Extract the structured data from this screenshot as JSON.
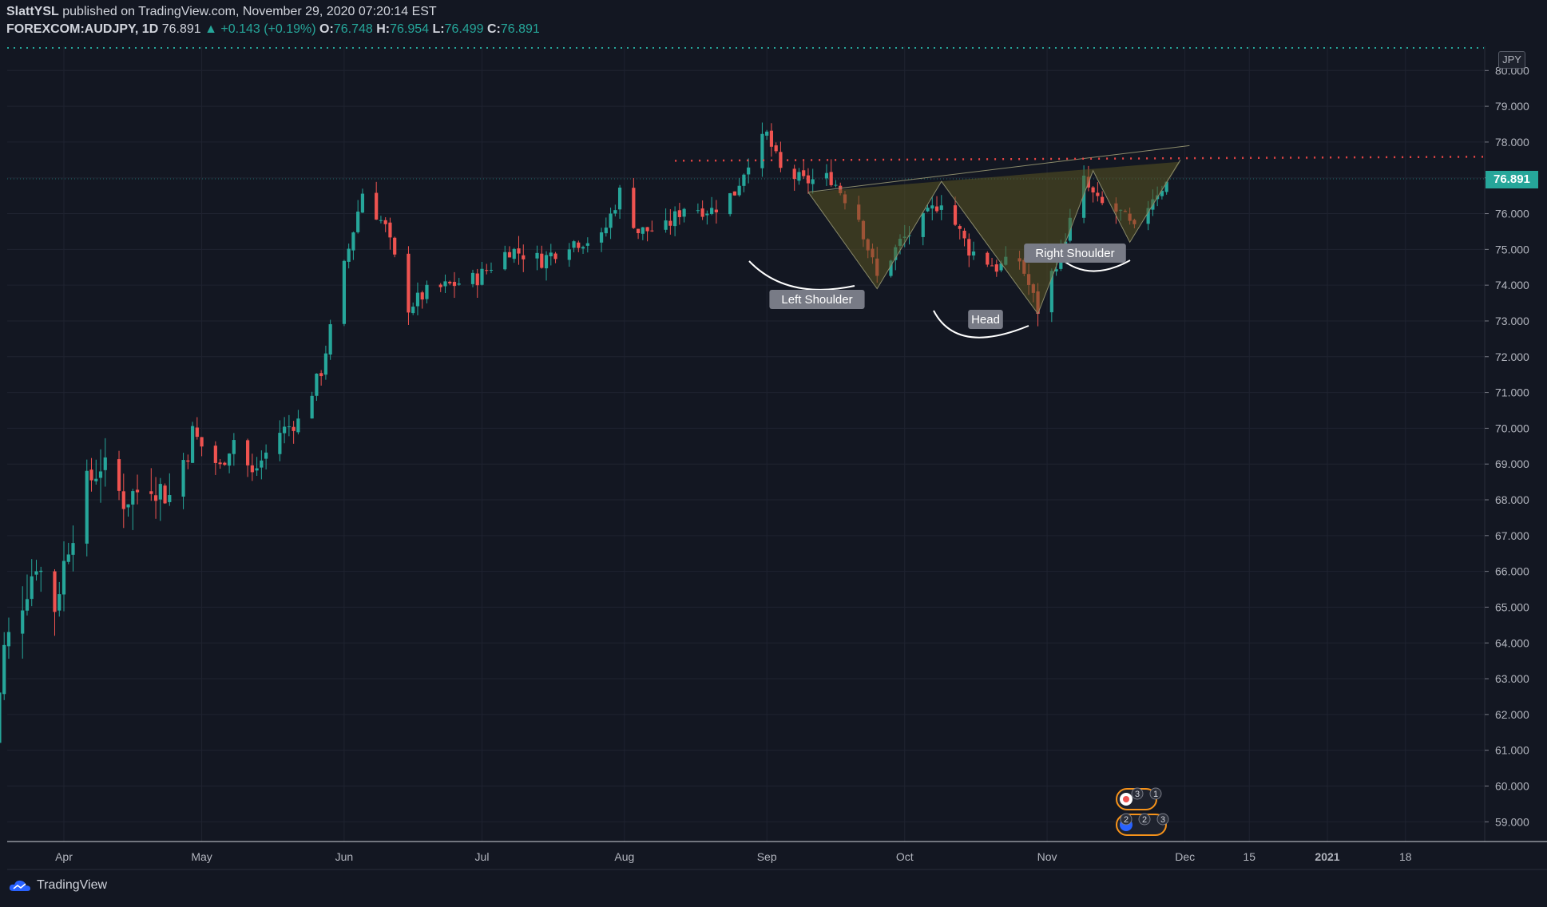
{
  "header": {
    "author": "SlattYSL",
    "published_text": "published on TradingView.com, November 29, 2020 07:20:14 EST",
    "symbol": "FOREXCOM:AUDJPY, 1D",
    "last": "76.891",
    "change": "+0.143 (+0.19%)",
    "open_label": "O:",
    "open": "76.748",
    "high_label": "H:",
    "high": "76.954",
    "low_label": "L:",
    "low": "76.499",
    "close_label": "C:",
    "close": "76.891"
  },
  "price_axis": {
    "currency": "JPY",
    "ticks": [
      "80.000",
      "79.000",
      "78.000",
      "77.000",
      "76.000",
      "75.000",
      "74.000",
      "73.000",
      "72.000",
      "71.000",
      "70.000",
      "69.000",
      "68.000",
      "67.000",
      "66.000",
      "65.000",
      "64.000",
      "63.000",
      "62.000",
      "61.000",
      "60.000",
      "59.000"
    ],
    "current_price": "76.891"
  },
  "time_axis": {
    "labels": [
      "Apr",
      "May",
      "Jun",
      "Jul",
      "Aug",
      "Sep",
      "Oct",
      "Nov",
      "Dec",
      "15",
      "2021",
      "18"
    ]
  },
  "annotations": {
    "left_shoulder": "Left Shoulder",
    "head": "Head",
    "right_shoulder": "Right Shoulder"
  },
  "event_badges": [
    "3",
    "1",
    "2",
    "2",
    "3"
  ],
  "footer": {
    "brand": "TradingView"
  },
  "colors": {
    "background": "#131722",
    "up": "#26a69a",
    "down": "#ef5350",
    "pattern_fill": "#5a5420",
    "resistance": "#e84545",
    "grid": "#1f2330"
  },
  "chart_data": {
    "type": "candlestick",
    "symbol": "FOREXCOM:AUDJPY",
    "interval": "1D",
    "ylim": [
      58.2,
      80.8
    ],
    "x_range": [
      "2020-03-16",
      "2021-01-20"
    ],
    "resistance_level": 77.5,
    "pattern": "inverse head and shoulders",
    "anchors": [
      [
        "2020-03-16",
        60.0
      ],
      [
        "2020-03-19",
        63.8
      ],
      [
        "2020-03-23",
        65.2
      ],
      [
        "2020-03-26",
        66.3
      ],
      [
        "2020-03-30",
        65.0
      ],
      [
        "2020-04-02",
        66.8
      ],
      [
        "2020-04-06",
        68.4
      ],
      [
        "2020-04-09",
        69.0
      ],
      [
        "2020-04-14",
        68.0
      ],
      [
        "2020-04-20",
        68.5
      ],
      [
        "2020-04-24",
        68.1
      ],
      [
        "2020-04-29",
        69.8
      ],
      [
        "2020-05-05",
        68.9
      ],
      [
        "2020-05-08",
        69.7
      ],
      [
        "2020-05-12",
        68.7
      ],
      [
        "2020-05-18",
        69.9
      ],
      [
        "2020-05-22",
        70.2
      ],
      [
        "2020-05-27",
        71.6
      ],
      [
        "2020-06-01",
        74.5
      ],
      [
        "2020-06-05",
        76.6
      ],
      [
        "2020-06-10",
        75.6
      ],
      [
        "2020-06-15",
        73.4
      ],
      [
        "2020-06-19",
        73.8
      ],
      [
        "2020-06-24",
        74.0
      ],
      [
        "2020-06-30",
        74.2
      ],
      [
        "2020-07-07",
        75.0
      ],
      [
        "2020-07-14",
        74.7
      ],
      [
        "2020-07-20",
        75.2
      ],
      [
        "2020-07-27",
        75.3
      ],
      [
        "2020-07-31",
        76.6
      ],
      [
        "2020-08-04",
        75.5
      ],
      [
        "2020-08-10",
        75.6
      ],
      [
        "2020-08-14",
        76.2
      ],
      [
        "2020-08-20",
        76.1
      ],
      [
        "2020-08-25",
        76.6
      ],
      [
        "2020-08-28",
        77.5
      ],
      [
        "2020-09-01",
        78.2
      ],
      [
        "2020-09-04",
        77.2
      ],
      [
        "2020-09-09",
        76.9
      ],
      [
        "2020-09-15",
        77.0
      ],
      [
        "2020-09-21",
        75.9
      ],
      [
        "2020-09-25",
        74.2
      ],
      [
        "2020-09-30",
        75.2
      ],
      [
        "2020-10-05",
        75.8
      ],
      [
        "2020-10-09",
        76.4
      ],
      [
        "2020-10-15",
        75.0
      ],
      [
        "2020-10-21",
        74.5
      ],
      [
        "2020-10-26",
        74.7
      ],
      [
        "2020-10-30",
        73.3
      ],
      [
        "2020-11-04",
        75.0
      ],
      [
        "2020-11-09",
        76.9
      ],
      [
        "2020-11-12",
        76.3
      ],
      [
        "2020-11-17",
        76.0
      ],
      [
        "2020-11-20",
        75.5
      ],
      [
        "2020-11-24",
        76.5
      ],
      [
        "2020-11-27",
        76.89
      ]
    ]
  }
}
